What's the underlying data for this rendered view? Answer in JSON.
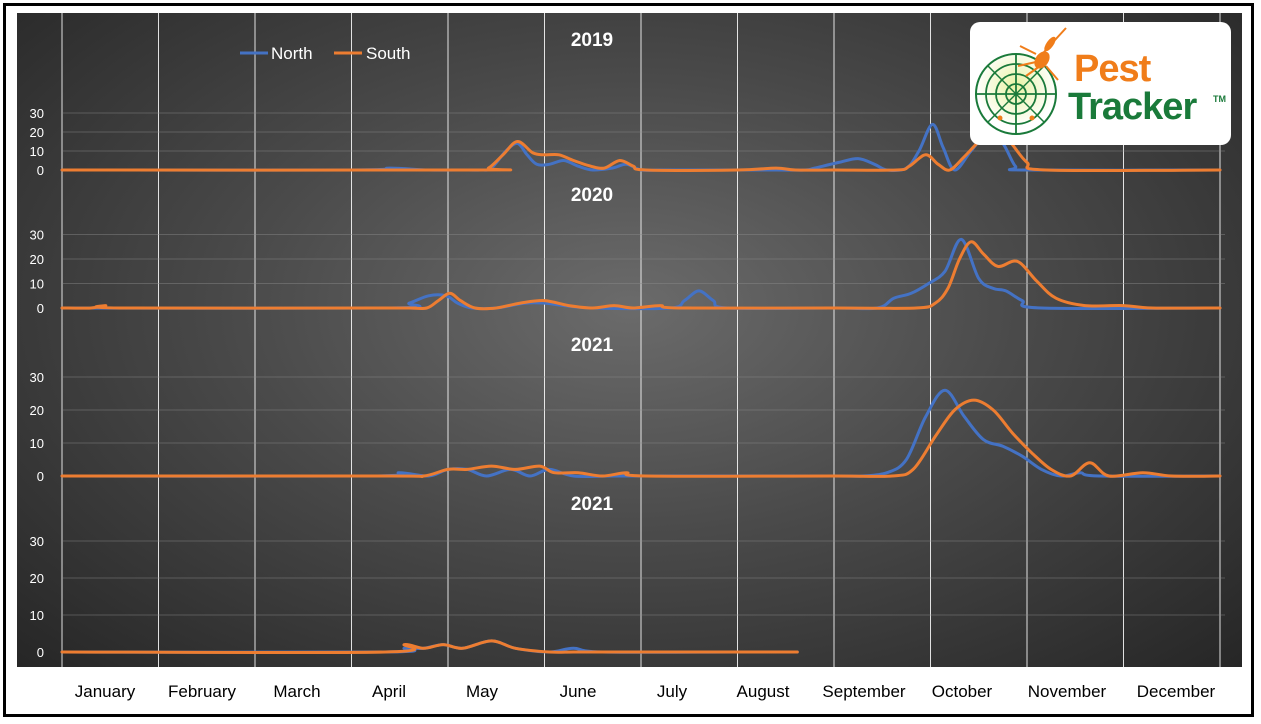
{
  "legend": {
    "north_label": "North",
    "south_label": "South"
  },
  "colors": {
    "north": "#4472c4",
    "south": "#ed7d31",
    "logo_orange": "#f07d1a",
    "logo_green": "#1a7a3a"
  },
  "logo": {
    "line1": "Pest",
    "line2": "Tracker",
    "tm": "TM",
    "icon": "radar-mosquito-icon"
  },
  "months": [
    "January",
    "February",
    "March",
    "April",
    "May",
    "June",
    "July",
    "August",
    "September",
    "October",
    "November",
    "December"
  ],
  "chart_data": {
    "type": "line",
    "x_axis": "months January to December",
    "grid": true,
    "legend_position": "top-left",
    "panels": [
      {
        "title": "2019",
        "ylim": [
          0,
          30
        ],
        "yticks": [
          0,
          10,
          20,
          30
        ],
        "series": [
          {
            "name": "North",
            "points": [
              [
                0,
                0
              ],
              [
                3,
                0
              ],
              [
                3.4,
                1
              ],
              [
                3.8,
                0
              ],
              [
                4.2,
                0
              ],
              [
                4.33,
                0
              ],
              [
                4.45,
                1
              ],
              [
                4.6,
                10
              ],
              [
                4.72,
                14
              ],
              [
                4.82,
                8
              ],
              [
                4.92,
                3
              ],
              [
                5.05,
                3
              ],
              [
                5.2,
                5
              ],
              [
                5.35,
                2
              ],
              [
                5.5,
                0
              ],
              [
                5.7,
                1
              ],
              [
                5.85,
                3
              ],
              [
                6.0,
                0
              ],
              [
                6.2,
                0
              ],
              [
                6.5,
                0
              ],
              [
                7,
                0
              ],
              [
                7.4,
                0
              ],
              [
                7.7,
                0
              ],
              [
                7.8,
                1
              ],
              [
                8.05,
                4
              ],
              [
                8.25,
                6
              ],
              [
                8.42,
                3
              ],
              [
                8.55,
                0
              ],
              [
                8.75,
                1
              ],
              [
                8.88,
                10
              ],
              [
                9.02,
                24
              ],
              [
                9.13,
                12
              ],
              [
                9.25,
                0
              ],
              [
                9.42,
                10
              ],
              [
                9.6,
                20
              ],
              [
                9.75,
                14
              ],
              [
                9.88,
                2
              ],
              [
                10.0,
                0
              ],
              [
                12,
                0
              ]
            ]
          },
          {
            "name": "South",
            "points": [
              [
                0,
                0
              ],
              [
                4.3,
                0
              ],
              [
                4.42,
                1
              ],
              [
                4.57,
                8
              ],
              [
                4.72,
                15
              ],
              [
                4.88,
                9
              ],
              [
                5.0,
                8
              ],
              [
                5.15,
                8
              ],
              [
                5.3,
                5
              ],
              [
                5.48,
                2
              ],
              [
                5.62,
                1
              ],
              [
                5.78,
                5
              ],
              [
                5.92,
                2
              ],
              [
                6.05,
                0
              ],
              [
                7,
                0
              ],
              [
                7.4,
                1
              ],
              [
                7.6,
                0
              ],
              [
                8,
                0
              ],
              [
                8.65,
                0
              ],
              [
                8.78,
                2
              ],
              [
                8.95,
                8
              ],
              [
                9.08,
                3
              ],
              [
                9.2,
                0
              ],
              [
                9.35,
                7
              ],
              [
                9.5,
                15
              ],
              [
                9.65,
                22
              ],
              [
                9.82,
                15
              ],
              [
                10.0,
                4
              ],
              [
                10.2,
                0
              ],
              [
                12,
                0
              ]
            ]
          }
        ]
      },
      {
        "title": "2020",
        "ylim": [
          0,
          30
        ],
        "yticks": [
          0,
          10,
          20,
          30
        ],
        "series": [
          {
            "name": "North",
            "points": [
              [
                0,
                0
              ],
              [
                3.4,
                0
              ],
              [
                3.6,
                2
              ],
              [
                3.8,
                5
              ],
              [
                3.98,
                5
              ],
              [
                4.1,
                2
              ],
              [
                4.25,
                0
              ],
              [
                4.5,
                0
              ],
              [
                4.8,
                2
              ],
              [
                5.0,
                2
              ],
              [
                5.2,
                1
              ],
              [
                5.5,
                0
              ],
              [
                6.3,
                0
              ],
              [
                6.45,
                3
              ],
              [
                6.6,
                7
              ],
              [
                6.75,
                3
              ],
              [
                6.9,
                0
              ],
              [
                8,
                0
              ],
              [
                8.45,
                0
              ],
              [
                8.62,
                4
              ],
              [
                8.8,
                6
              ],
              [
                8.98,
                10
              ],
              [
                9.15,
                15
              ],
              [
                9.32,
                28
              ],
              [
                9.5,
                12
              ],
              [
                9.65,
                8
              ],
              [
                9.78,
                7
              ],
              [
                9.95,
                3
              ],
              [
                10.15,
                0
              ],
              [
                12,
                0
              ]
            ]
          },
          {
            "name": "South",
            "points": [
              [
                0,
                0
              ],
              [
                0.3,
                0
              ],
              [
                0.45,
                1
              ],
              [
                0.6,
                0
              ],
              [
                3.4,
                0
              ],
              [
                3.6,
                0
              ],
              [
                3.78,
                0
              ],
              [
                3.9,
                3
              ],
              [
                4.02,
                6
              ],
              [
                4.13,
                3
              ],
              [
                4.28,
                0
              ],
              [
                4.5,
                0
              ],
              [
                4.75,
                2
              ],
              [
                5.0,
                3
              ],
              [
                5.25,
                1
              ],
              [
                5.5,
                0
              ],
              [
                5.72,
                1
              ],
              [
                5.92,
                0
              ],
              [
                6.2,
                1
              ],
              [
                6.4,
                0
              ],
              [
                8,
                0
              ],
              [
                8.85,
                0
              ],
              [
                9.05,
                2
              ],
              [
                9.18,
                8
              ],
              [
                9.3,
                20
              ],
              [
                9.42,
                27
              ],
              [
                9.55,
                22
              ],
              [
                9.7,
                17
              ],
              [
                9.9,
                19
              ],
              [
                10.1,
                11
              ],
              [
                10.3,
                4
              ],
              [
                10.6,
                1
              ],
              [
                11.0,
                1
              ],
              [
                11.3,
                0
              ],
              [
                12,
                0
              ]
            ]
          }
        ]
      },
      {
        "title": "2021",
        "ylim": [
          0,
          30
        ],
        "yticks": [
          0,
          10,
          20,
          30
        ],
        "series": [
          {
            "name": "North",
            "points": [
              [
                0,
                0
              ],
              [
                3.2,
                0
              ],
              [
                3.5,
                1
              ],
              [
                3.8,
                0
              ],
              [
                4.0,
                2
              ],
              [
                4.2,
                2
              ],
              [
                4.4,
                0
              ],
              [
                4.65,
                2
              ],
              [
                4.85,
                0
              ],
              [
                5.05,
                2
              ],
              [
                5.3,
                0
              ],
              [
                5.7,
                0
              ],
              [
                6.0,
                0
              ],
              [
                8,
                0
              ],
              [
                8.3,
                0
              ],
              [
                8.55,
                1
              ],
              [
                8.75,
                5
              ],
              [
                8.95,
                18
              ],
              [
                9.15,
                26
              ],
              [
                9.35,
                18
              ],
              [
                9.55,
                11
              ],
              [
                9.75,
                9
              ],
              [
                9.95,
                6
              ],
              [
                10.15,
                2
              ],
              [
                10.35,
                0
              ],
              [
                10.55,
                1
              ],
              [
                10.75,
                0
              ],
              [
                12,
                0
              ]
            ]
          },
          {
            "name": "South",
            "points": [
              [
                0,
                0
              ],
              [
                0.3,
                0
              ],
              [
                0.6,
                0
              ],
              [
                3.4,
                0
              ],
              [
                3.75,
                0
              ],
              [
                4.0,
                2
              ],
              [
                4.2,
                2
              ],
              [
                4.45,
                3
              ],
              [
                4.7,
                2
              ],
              [
                4.95,
                3
              ],
              [
                5.1,
                1
              ],
              [
                5.35,
                1
              ],
              [
                5.6,
                0
              ],
              [
                5.85,
                1
              ],
              [
                6.05,
                0
              ],
              [
                8,
                0
              ],
              [
                8.6,
                0
              ],
              [
                8.82,
                2
              ],
              [
                9.05,
                12
              ],
              [
                9.25,
                20
              ],
              [
                9.45,
                23
              ],
              [
                9.65,
                20
              ],
              [
                9.85,
                13
              ],
              [
                10.05,
                7
              ],
              [
                10.25,
                2
              ],
              [
                10.45,
                0
              ],
              [
                10.65,
                4
              ],
              [
                10.85,
                0
              ],
              [
                11.2,
                1
              ],
              [
                11.5,
                0
              ],
              [
                12,
                0
              ]
            ]
          }
        ]
      },
      {
        "title": "2021",
        "ylim": [
          0,
          30
        ],
        "yticks": [
          0,
          10,
          20,
          30
        ],
        "series": [
          {
            "name": "North",
            "points": [
              [
                0,
                0
              ],
              [
                3.35,
                0
              ],
              [
                3.55,
                1
              ],
              [
                3.75,
                1
              ],
              [
                3.95,
                2
              ],
              [
                4.15,
                1
              ],
              [
                4.45,
                3
              ],
              [
                4.7,
                1
              ],
              [
                5.05,
                0
              ],
              [
                5.3,
                1
              ],
              [
                5.6,
                0
              ],
              [
                7.0,
                0
              ],
              [
                7.62,
                0
              ]
            ]
          },
          {
            "name": "South",
            "points": [
              [
                0,
                0
              ],
              [
                3.35,
                0
              ],
              [
                3.55,
                2
              ],
              [
                3.75,
                1
              ],
              [
                3.95,
                2
              ],
              [
                4.15,
                1
              ],
              [
                4.45,
                3
              ],
              [
                4.7,
                1
              ],
              [
                5.05,
                0
              ],
              [
                5.3,
                0
              ],
              [
                5.6,
                0
              ],
              [
                7.0,
                0
              ],
              [
                7.62,
                0
              ]
            ]
          }
        ]
      }
    ]
  }
}
